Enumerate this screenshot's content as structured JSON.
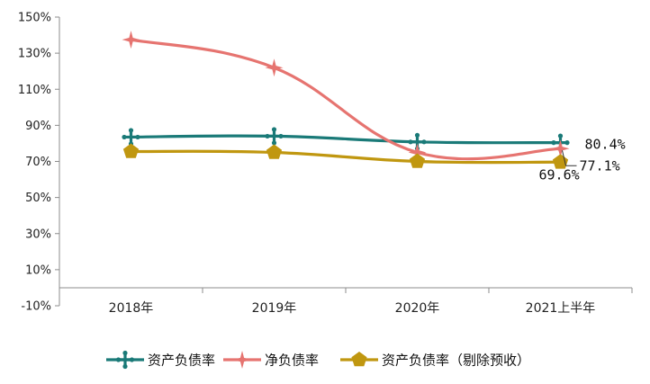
{
  "chart_data": {
    "type": "line",
    "categories": [
      "2018年",
      "2019年",
      "2020年",
      "2021上半年"
    ],
    "ylim": [
      -10,
      150
    ],
    "yticks": [
      -10,
      10,
      30,
      50,
      70,
      90,
      110,
      130,
      150
    ],
    "ytick_labels": [
      "-10%",
      "10%",
      "30%",
      "50%",
      "70%",
      "90%",
      "110%",
      "130%",
      "150%"
    ],
    "grid": false,
    "legend_position": "bottom",
    "series": [
      {
        "name": "资产负债率",
        "values": [
          83.5,
          84.0,
          80.8,
          80.4
        ],
        "color": "#1a7a78",
        "marker": "plus-icon"
      },
      {
        "name": "净负债率",
        "values": [
          137.5,
          122.0,
          75.0,
          77.1
        ],
        "color": "#e67470",
        "marker": "star4-icon"
      },
      {
        "name": "资产负债率（剔除预收）",
        "values": [
          75.5,
          75.0,
          70.0,
          69.6
        ],
        "color": "#c09710",
        "marker": "pentagon-icon"
      }
    ],
    "data_labels": [
      {
        "series": 0,
        "index": 3,
        "text": "80.4%"
      },
      {
        "series": 1,
        "index": 3,
        "text": "77.1%"
      },
      {
        "series": 2,
        "index": 3,
        "text": "69.6%"
      }
    ]
  }
}
